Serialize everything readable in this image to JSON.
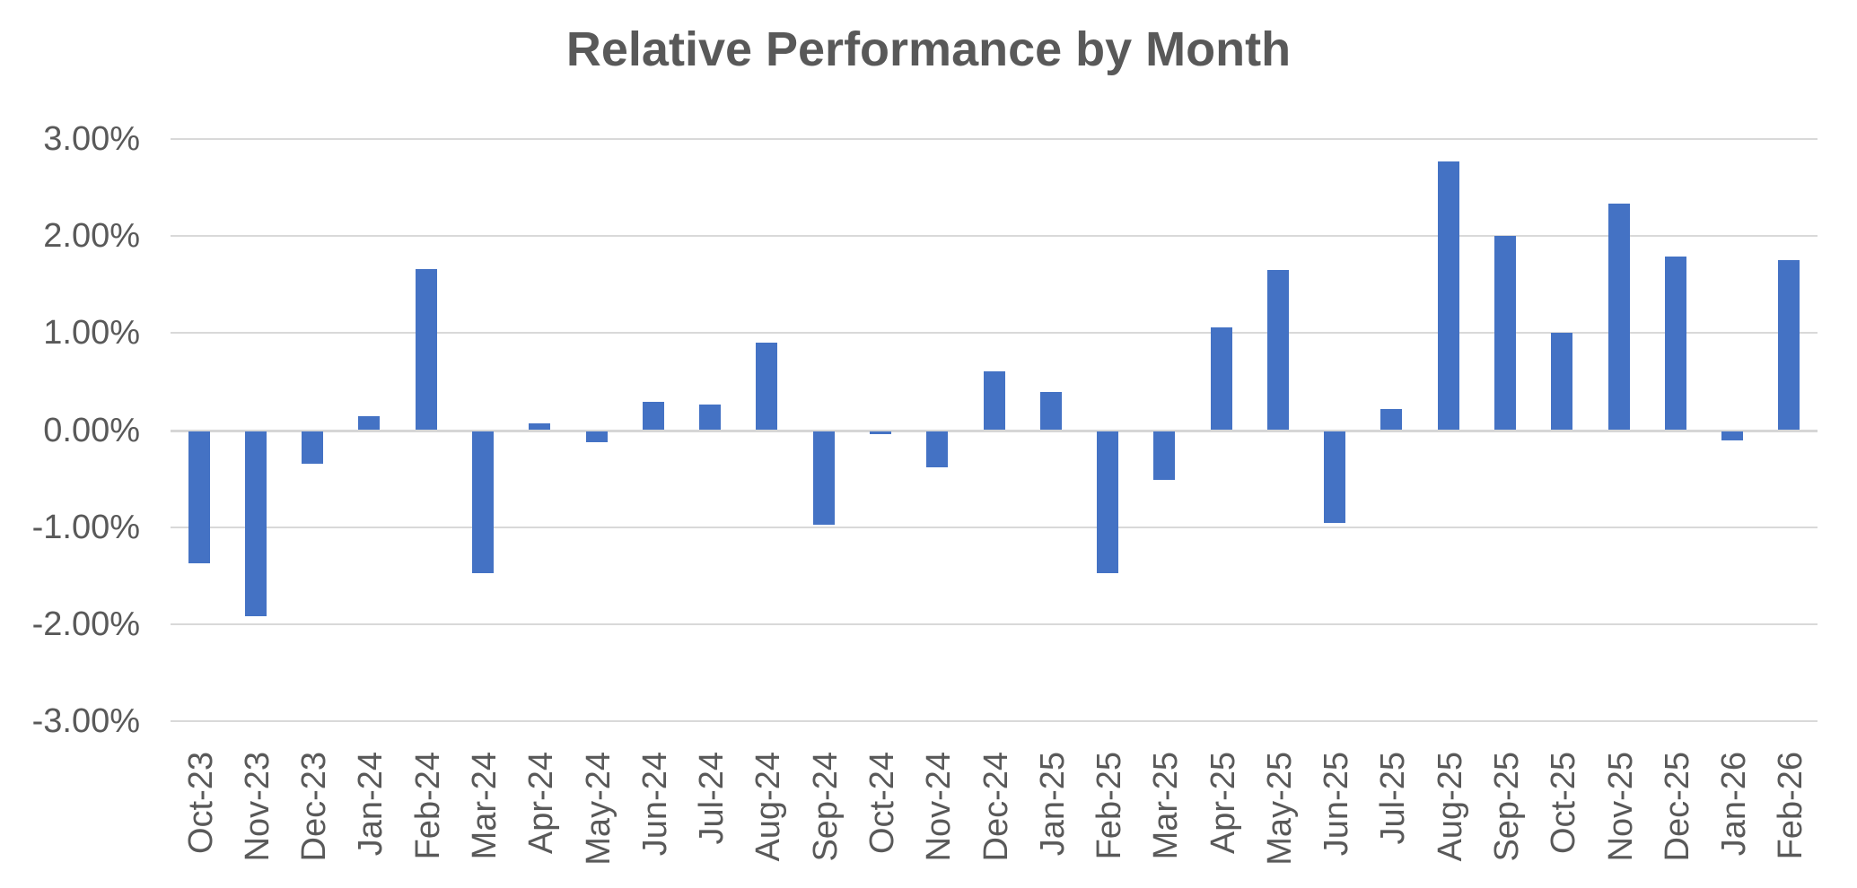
{
  "chart_data": {
    "type": "bar",
    "title": "Relative Performance by Month",
    "xlabel": "",
    "ylabel": "",
    "ylim": [
      -3.0,
      3.0
    ],
    "ytick_step": 1.0,
    "yticks": [
      "3.00%",
      "2.00%",
      "1.00%",
      "0.00%",
      "-1.00%",
      "-2.00%",
      "-3.00%"
    ],
    "grid": true,
    "legend": "none",
    "bar_color": "#4472C4",
    "gridline_color": "#D9D9D9",
    "text_color": "#595959",
    "categories": [
      "Oct-23",
      "Nov-23",
      "Dec-23",
      "Jan-24",
      "Feb-24",
      "Mar-24",
      "Apr-24",
      "May-24",
      "Jun-24",
      "Jul-24",
      "Aug-24",
      "Sep-24",
      "Oct-24",
      "Nov-24",
      "Dec-24",
      "Jan-25",
      "Feb-25",
      "Mar-25",
      "Apr-25",
      "May-25",
      "Jun-25",
      "Jul-25",
      "Aug-25",
      "Sep-25",
      "Oct-25",
      "Nov-25",
      "Dec-25",
      "Jan-26",
      "Feb-26"
    ],
    "values": [
      -1.36,
      -1.9,
      -0.33,
      0.14,
      1.66,
      -1.46,
      0.07,
      -0.11,
      0.29,
      0.26,
      0.9,
      -0.96,
      -0.03,
      -0.37,
      0.61,
      0.39,
      -1.46,
      -0.5,
      1.06,
      1.65,
      -0.94,
      0.22,
      2.77,
      2.0,
      1.0,
      2.33,
      1.79,
      -0.09,
      1.75
    ],
    "value_unit": "percent"
  }
}
